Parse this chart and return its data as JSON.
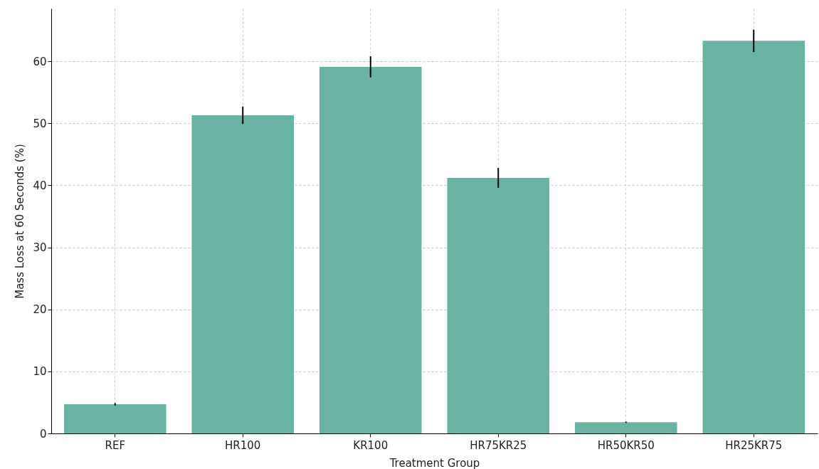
{
  "chart_data": {
    "type": "bar",
    "xlabel": "Treatment Group",
    "ylabel": "Mass Loss at 60 Seconds (%)",
    "categories": [
      "REF",
      "HR100",
      "KR100",
      "HR75KR25",
      "HR50KR50",
      "HR25KR75"
    ],
    "values": [
      4.7,
      51.3,
      59.1,
      41.2,
      1.8,
      63.3
    ],
    "errors": [
      0.2,
      1.4,
      1.7,
      1.6,
      0.1,
      1.8
    ],
    "color": "#69b3a2",
    "ylim": [
      0,
      68.5
    ],
    "yticks": [
      0,
      10,
      20,
      30,
      40,
      50,
      60
    ],
    "grid": true
  }
}
